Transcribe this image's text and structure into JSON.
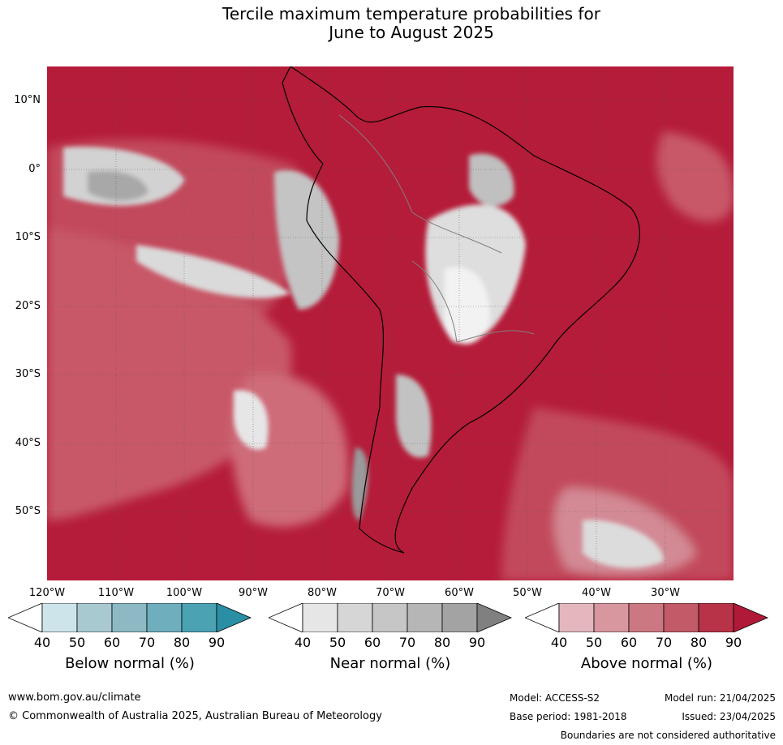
{
  "title_line1": "Tercile maximum temperature probabilities for",
  "title_line2": "June to August 2025",
  "lat_labels": [
    "10°N",
    "0°",
    "10°S",
    "20°S",
    "30°S",
    "40°S",
    "50°S"
  ],
  "lon_labels": [
    "120°W",
    "110°W",
    "100°W",
    "90°W",
    "80°W",
    "70°W",
    "60°W",
    "50°W",
    "40°W",
    "30°W"
  ],
  "colorbars": [
    {
      "label": "Below normal (%)",
      "ticks": [
        "40",
        "50",
        "60",
        "70",
        "80",
        "90"
      ],
      "colors": [
        "#ffffff",
        "#cde4ea",
        "#a8c9d0",
        "#8cb9c4",
        "#6eaebd",
        "#4aa2b3",
        "#2a8fa4"
      ]
    },
    {
      "label": "Near normal (%)",
      "ticks": [
        "40",
        "50",
        "60",
        "70",
        "80",
        "90"
      ],
      "colors": [
        "#ffffff",
        "#e6e6e6",
        "#d6d6d6",
        "#c6c6c6",
        "#b6b6b6",
        "#a3a3a3",
        "#808080"
      ]
    },
    {
      "label": "Above normal (%)",
      "ticks": [
        "40",
        "50",
        "60",
        "70",
        "80",
        "90"
      ],
      "colors": [
        "#ffffff",
        "#e3b7bd",
        "#d8969f",
        "#cc7882",
        "#c25a67",
        "#b83348",
        "#b01a38"
      ]
    }
  ],
  "footer": {
    "url": "www.bom.gov.au/climate",
    "copyright": "© Commonwealth of Australia 2025, Australian Bureau of Meteorology",
    "model": "Model: ACCESS-S2",
    "base_period": "Base period: 1981-2018",
    "model_run": "Model run: 21/04/2025",
    "issued": "Issued: 23/04/2025",
    "disclaimer": "Boundaries are not considered authoritative"
  }
}
